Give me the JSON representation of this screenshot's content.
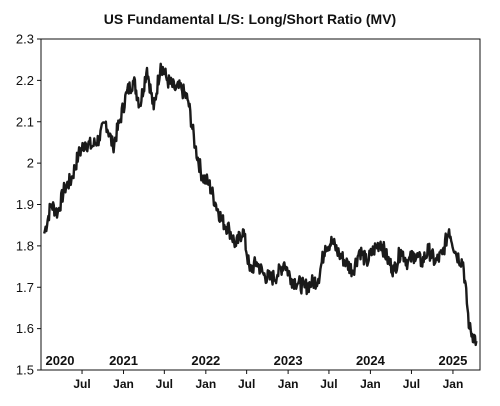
{
  "chart_data": {
    "type": "line",
    "title": "US Fundamental L/S: Long/Short Ratio (MV)",
    "xlabel": "",
    "ylabel": "",
    "ylim": [
      1.5,
      2.3
    ],
    "yticks": [
      "2.3",
      "2.2",
      "2.1",
      "2",
      "1.9",
      "1.8",
      "1.7",
      "1.6",
      "1.5"
    ],
    "year_labels": [
      "2020",
      "2021",
      "2022",
      "2023",
      "2024",
      "2025"
    ],
    "month_labels": [
      "Jul",
      "Jan",
      "Jul",
      "Jan",
      "Jul",
      "Jan",
      "Jul",
      "Jan",
      "Jul",
      "Jan"
    ],
    "grid": false,
    "legend": "none",
    "colors": {
      "line": "#1a1a1a",
      "axis": "#111111"
    },
    "series": [
      {
        "values_x": [
          "2020-01-15",
          "2020-02-15",
          "2020-03-15",
          "2020-04-15",
          "2020-05-15",
          "2020-06-15",
          "2020-07-15",
          "2020-08-15",
          "2020-09-15",
          "2020-10-15",
          "2020-11-15",
          "2020-12-15",
          "2021-01-15",
          "2021-02-15",
          "2021-03-15",
          "2021-04-15",
          "2021-05-15",
          "2021-06-15",
          "2021-07-15",
          "2021-08-15",
          "2021-09-15",
          "2021-10-15",
          "2021-11-15",
          "2021-12-15",
          "2022-01-15",
          "2022-02-15",
          "2022-03-15",
          "2022-04-15",
          "2022-05-15",
          "2022-06-15",
          "2022-07-15",
          "2022-08-15",
          "2022-09-15",
          "2022-10-15",
          "2022-11-15",
          "2022-12-15",
          "2023-01-15",
          "2023-02-15",
          "2023-03-15",
          "2023-04-15",
          "2023-05-15",
          "2023-06-15",
          "2023-07-15",
          "2023-08-15",
          "2023-09-15",
          "2023-10-15",
          "2023-11-15",
          "2023-12-15",
          "2024-01-15",
          "2024-02-15",
          "2024-03-15",
          "2024-04-15",
          "2024-05-15",
          "2024-06-15",
          "2024-07-15",
          "2024-08-15",
          "2024-09-15",
          "2024-10-15",
          "2024-11-15",
          "2024-12-15",
          "2025-01-15",
          "2025-02-15",
          "2025-03-15",
          "2025-04-15"
        ],
        "values_y": [
          1.83,
          1.9,
          1.88,
          1.94,
          1.96,
          2.02,
          2.05,
          2.04,
          2.06,
          2.1,
          2.04,
          2.1,
          2.17,
          2.2,
          2.14,
          2.23,
          2.13,
          2.24,
          2.2,
          2.18,
          2.18,
          2.15,
          2.04,
          1.97,
          1.95,
          1.9,
          1.86,
          1.84,
          1.8,
          1.84,
          1.74,
          1.76,
          1.73,
          1.72,
          1.73,
          1.76,
          1.72,
          1.71,
          1.7,
          1.71,
          1.72,
          1.8,
          1.81,
          1.78,
          1.76,
          1.74,
          1.79,
          1.76,
          1.79,
          1.81,
          1.77,
          1.74,
          1.79,
          1.76,
          1.78,
          1.76,
          1.79,
          1.76,
          1.78,
          1.84,
          1.78,
          1.76,
          1.6,
          1.57
        ]
      }
    ]
  }
}
